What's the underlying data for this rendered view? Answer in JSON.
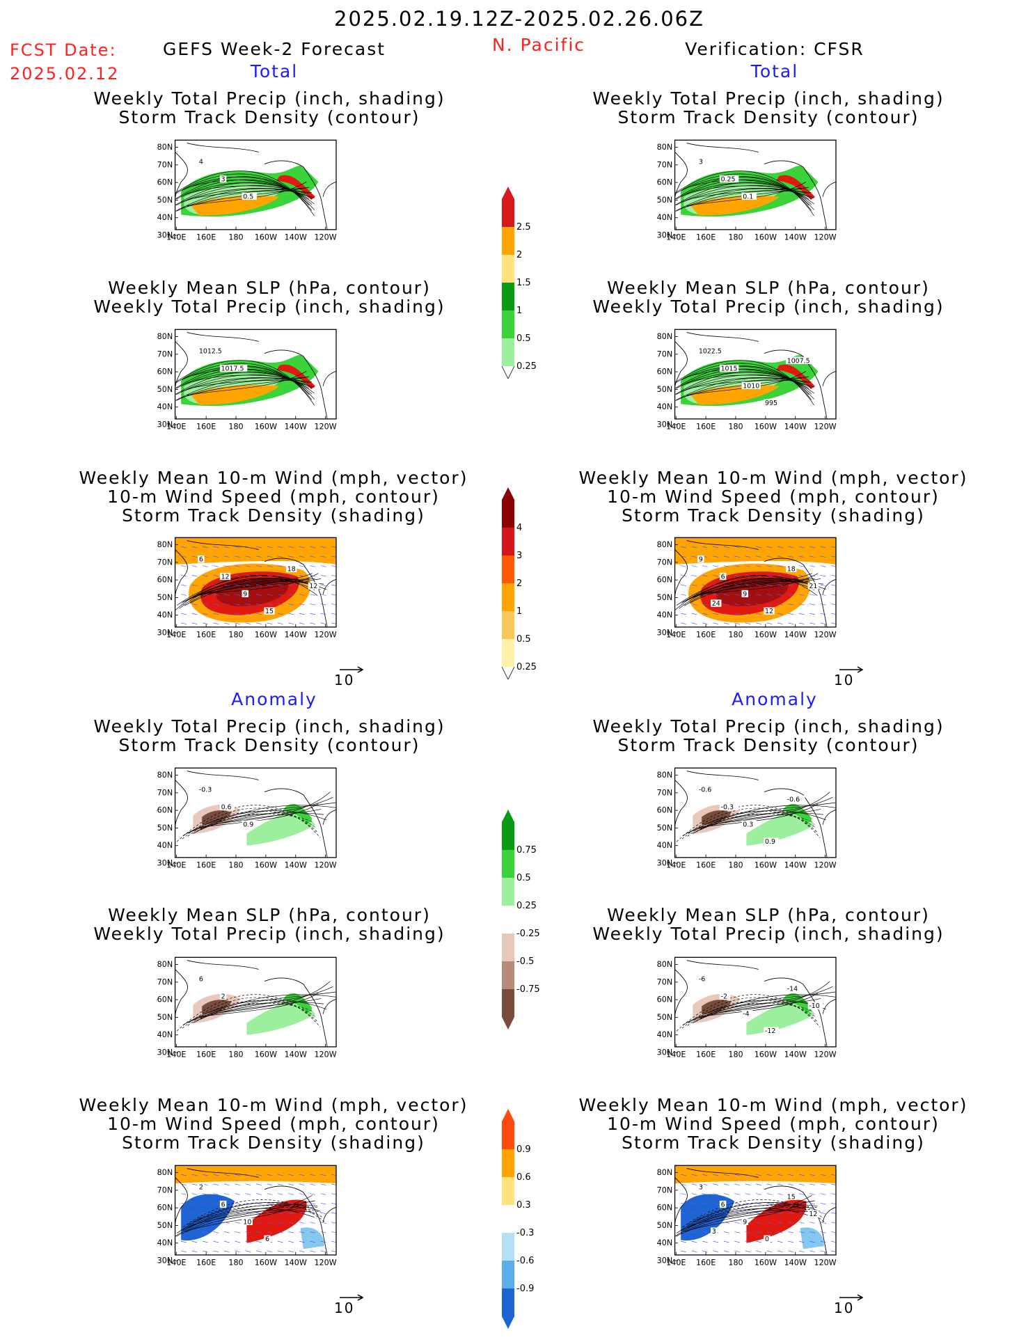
{
  "header": {
    "date_range": "2025.02.19.12Z-2025.02.26.06Z",
    "fcst_label": "FCST Date:",
    "fcst_date": "2025.02.12",
    "region": "N. Pacific",
    "left_title": "GEFS Week-2 Forecast",
    "right_title": "Verification: CFSR",
    "total_label": "Total",
    "anomaly_label": "Anomaly"
  },
  "colors": {
    "red_text": "#ff2020",
    "blue_text": "#1a1aff",
    "green_dark": "#0a9a14",
    "green_mid": "#3ad33a",
    "green_light": "#9cef9c",
    "orange": "#ffa400",
    "red": "#e01a10",
    "dark_red": "#a30f0f",
    "brown": "#7a4c3c",
    "tan": "#e8c8bb",
    "blue": "#1e64d2",
    "sky": "#84c8f0"
  },
  "panel_titles": {
    "precip_track": [
      "Weekly Total Precip (inch, shading)",
      "Storm Track Density (contour)"
    ],
    "slp_precip": [
      "Weekly Mean SLP (hPa, contour)",
      "Weekly Total Precip (inch, shading)"
    ],
    "wind_track": [
      "Weekly Mean 10-m Wind (mph, vector)",
      "10-m Wind Speed (mph, contour)",
      "Storm Track Density (shading)"
    ]
  },
  "axes": {
    "lat": [
      "80N",
      "70N",
      "60N",
      "50N",
      "40N",
      "30N"
    ],
    "lon": [
      "140E",
      "160E",
      "180",
      "160W",
      "140W",
      "120W"
    ]
  },
  "vector_ref": "10",
  "colorbars": {
    "precip_total": [
      "2.5",
      "2",
      "1.5",
      "1",
      "0.5",
      "0.25"
    ],
    "track_total": [
      "4",
      "3",
      "2",
      "1",
      "0.5",
      "0.25"
    ],
    "precip_anom": [
      "0.75",
      "0.5",
      "0.25",
      "-0.25",
      "-0.5",
      "-0.75"
    ],
    "track_anom": [
      "0.9",
      "0.6",
      "0.3",
      "-0.3",
      "-0.6",
      "-0.9"
    ]
  },
  "contour_labels": {
    "p1": [
      "4",
      "3",
      "0.5"
    ],
    "p2": [
      "1012.5",
      "1017.5"
    ],
    "p3": [
      "6",
      "12",
      "9",
      "15",
      "18",
      "12"
    ],
    "p4": [
      "-0.3",
      "0.6",
      "0.9"
    ],
    "p5": [
      "6",
      "2"
    ],
    "p6": [
      "2",
      "6",
      "10",
      "6"
    ],
    "p7": [
      "3",
      "0.25",
      "0.1"
    ],
    "p8": [
      "1022.5",
      "1015",
      "1010",
      "995",
      "1007.5"
    ],
    "p9": [
      "9",
      "6",
      "9",
      "12",
      "18",
      "21",
      "24"
    ],
    "p10": [
      "-0.6",
      "-0.3",
      "0.3",
      "0.9",
      "-0.6"
    ],
    "p11": [
      "-6",
      "-2",
      "-4",
      "-12",
      "-14",
      "-10"
    ],
    "p12": [
      "3",
      "6",
      "9",
      "0",
      "15",
      "12",
      "3"
    ]
  }
}
